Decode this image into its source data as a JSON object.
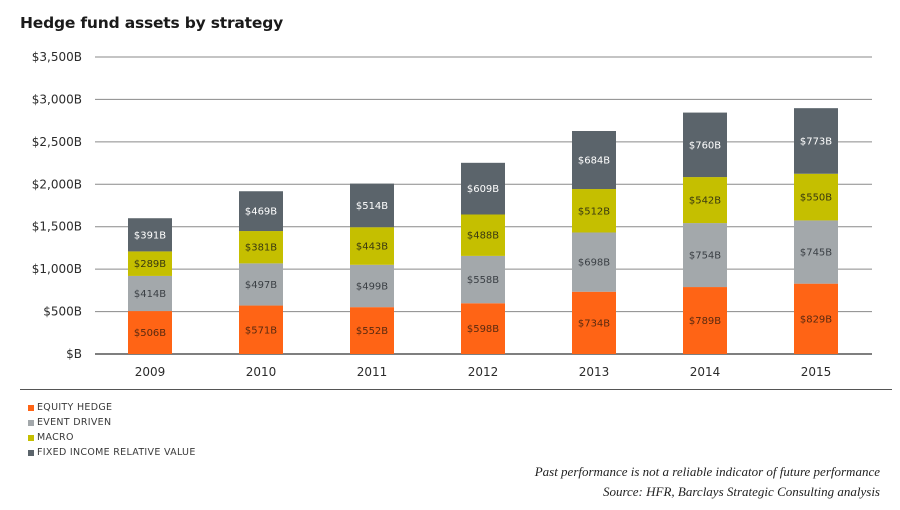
{
  "title": "Hedge fund assets by strategy",
  "chart_data": {
    "type": "bar",
    "stacked": true,
    "title": "Hedge fund assets by strategy",
    "xlabel": "",
    "ylabel": "",
    "categories": [
      "2009",
      "2010",
      "2011",
      "2012",
      "2013",
      "2014",
      "2015"
    ],
    "ylim": [
      0,
      3500
    ],
    "yticks": [
      0,
      500,
      1000,
      1500,
      2000,
      2500,
      3000,
      3500
    ],
    "ytick_labels": [
      "$B",
      "$500B",
      "$1,000B",
      "$1,500B",
      "$2,000B",
      "$2,500B",
      "$3,000B",
      "$3,500B"
    ],
    "grid": true,
    "legend_position": "bottom-left",
    "series": [
      {
        "name": "EQUITY HEDGE",
        "color": "#ff6415",
        "label_color": "#5a2a10",
        "values": [
          506,
          571,
          552,
          598,
          734,
          789,
          829
        ]
      },
      {
        "name": "EVENT DRIVEN",
        "color": "#a3a8ab",
        "label_color": "#3a3f44",
        "values": [
          414,
          497,
          499,
          558,
          698,
          754,
          745
        ]
      },
      {
        "name": "MACRO",
        "color": "#c5bf00",
        "label_color": "#3a3a10",
        "values": [
          289,
          381,
          443,
          488,
          512,
          542,
          550
        ]
      },
      {
        "name": "FIXED INCOME RELATIVE VALUE",
        "color": "#5b646b",
        "label_color": "#ffffff",
        "values": [
          391,
          469,
          514,
          609,
          684,
          760,
          773
        ]
      }
    ],
    "value_label_format": "${v}B"
  },
  "footer": {
    "disclaimer": "Past performance is not a reliable indicator of future performance",
    "source": "Source: HFR, Barclays Strategic Consulting analysis"
  }
}
